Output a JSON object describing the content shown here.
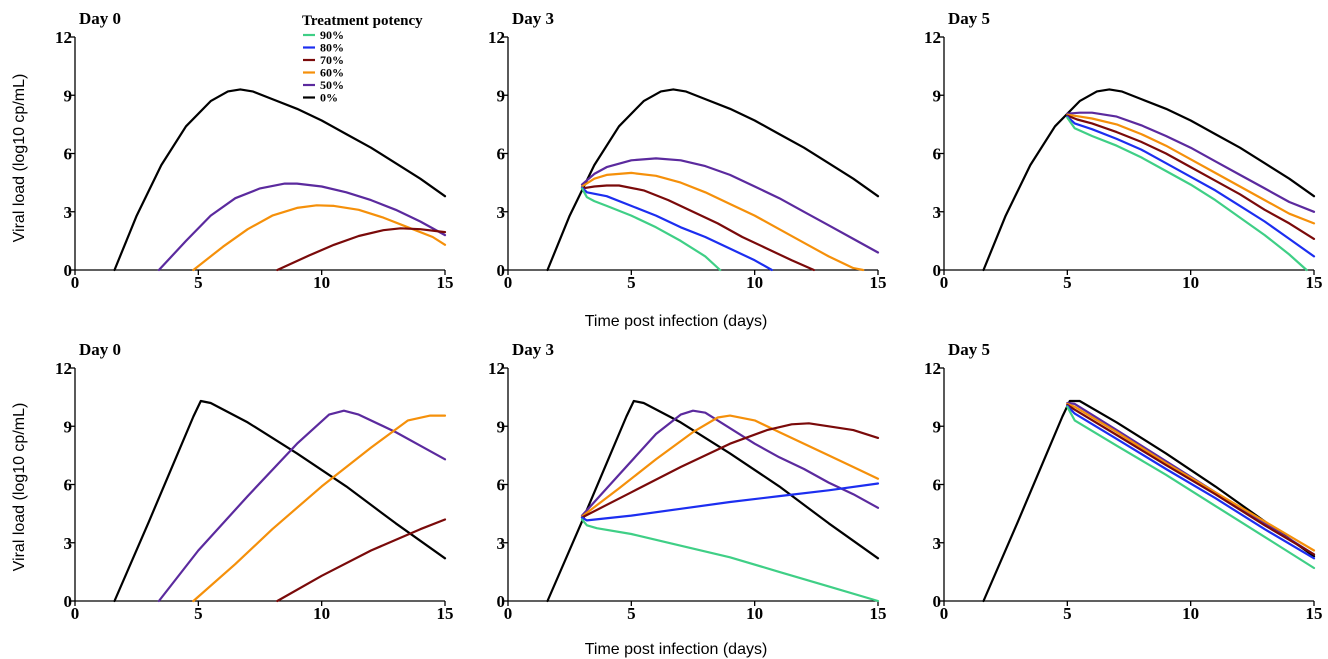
{
  "legend": {
    "title": "Treatment potency",
    "entries": [
      {
        "label": "90%",
        "color": "#3fcf86"
      },
      {
        "label": "80%",
        "color": "#1c2ef0"
      },
      {
        "label": "70%",
        "color": "#7a0a0a"
      },
      {
        "label": "60%",
        "color": "#f5900a"
      },
      {
        "label": "50%",
        "color": "#5b2a9e"
      },
      {
        "label": "0%",
        "color": "#000000"
      }
    ]
  },
  "chart_data": [
    {
      "type": "line",
      "title": "Day 0",
      "ylabel": "Viral load (log10 cp/mL)",
      "xlabel": "",
      "xlim": [
        0,
        15
      ],
      "ylim": [
        0,
        12
      ],
      "xticks": [
        0,
        5,
        10,
        15
      ],
      "yticks": [
        0,
        3,
        6,
        9,
        12
      ],
      "series": [
        {
          "name": "0%",
          "color": "#000000",
          "x": [
            1.6,
            2.5,
            3.5,
            4.5,
            5.5,
            6.2,
            6.7,
            7.2,
            8,
            9,
            10,
            11,
            12,
            13,
            14,
            15
          ],
          "y": [
            0,
            2.8,
            5.4,
            7.4,
            8.7,
            9.2,
            9.3,
            9.2,
            8.8,
            8.3,
            7.7,
            7,
            6.3,
            5.5,
            4.7,
            3.8
          ]
        },
        {
          "name": "50%",
          "color": "#5b2a9e",
          "x": [
            3.4,
            4.5,
            5.5,
            6.5,
            7.5,
            8.5,
            9,
            10,
            11,
            12,
            13,
            14,
            15
          ],
          "y": [
            0,
            1.5,
            2.8,
            3.7,
            4.2,
            4.45,
            4.45,
            4.3,
            4,
            3.6,
            3.1,
            2.5,
            1.8
          ]
        },
        {
          "name": "60%",
          "color": "#f5900a",
          "x": [
            4.8,
            6,
            7,
            8,
            9,
            9.8,
            10.5,
            11.5,
            12.5,
            13.5,
            14.5,
            15
          ],
          "y": [
            0,
            1.2,
            2.1,
            2.8,
            3.2,
            3.33,
            3.3,
            3.1,
            2.7,
            2.2,
            1.7,
            1.3
          ]
        },
        {
          "name": "70%",
          "color": "#7a0a0a",
          "x": [
            8.2,
            9.5,
            10.5,
            11.5,
            12.5,
            13.2,
            14,
            15
          ],
          "y": [
            0,
            0.75,
            1.3,
            1.75,
            2.05,
            2.15,
            2.1,
            1.95
          ]
        }
      ]
    },
    {
      "type": "line",
      "title": "Day 3",
      "ylabel": "",
      "xlabel": "Time post infection (days)",
      "xlim": [
        0,
        15
      ],
      "ylim": [
        0,
        12
      ],
      "xticks": [
        0,
        5,
        10,
        15
      ],
      "yticks": [
        0,
        3,
        6,
        9,
        12
      ],
      "series": [
        {
          "name": "0%",
          "color": "#000000",
          "x": [
            1.6,
            2.5,
            3.5,
            4.5,
            5.5,
            6.2,
            6.7,
            7.2,
            8,
            9,
            10,
            11,
            12,
            13,
            14,
            15
          ],
          "y": [
            0,
            2.8,
            5.4,
            7.4,
            8.7,
            9.2,
            9.3,
            9.2,
            8.8,
            8.3,
            7.7,
            7,
            6.3,
            5.5,
            4.7,
            3.8
          ]
        },
        {
          "name": "50%",
          "color": "#5b2a9e",
          "x": [
            3,
            3.5,
            4,
            5,
            6,
            7,
            8,
            9,
            10,
            11,
            12,
            13,
            14,
            15
          ],
          "y": [
            4.4,
            4.95,
            5.3,
            5.65,
            5.75,
            5.65,
            5.35,
            4.9,
            4.3,
            3.7,
            3,
            2.3,
            1.6,
            0.9
          ]
        },
        {
          "name": "60%",
          "color": "#f5900a",
          "x": [
            3,
            3.5,
            4,
            5,
            6,
            7,
            8,
            9,
            10,
            11,
            12,
            13,
            14,
            14.4
          ],
          "y": [
            4.3,
            4.7,
            4.9,
            5,
            4.85,
            4.5,
            4,
            3.4,
            2.8,
            2.1,
            1.4,
            0.7,
            0.1,
            0
          ]
        },
        {
          "name": "70%",
          "color": "#7a0a0a",
          "x": [
            3,
            3.5,
            4,
            4.5,
            5.5,
            6.5,
            7.5,
            8.5,
            9.5,
            10.5,
            11.5,
            12.4
          ],
          "y": [
            4.2,
            4.3,
            4.35,
            4.35,
            4.1,
            3.6,
            3,
            2.4,
            1.7,
            1.1,
            0.5,
            0
          ]
        },
        {
          "name": "80%",
          "color": "#1c2ef0",
          "x": [
            3,
            3.2,
            4,
            5,
            6,
            7,
            8,
            9,
            10,
            10.7
          ],
          "y": [
            4.25,
            4,
            3.8,
            3.3,
            2.8,
            2.2,
            1.7,
            1.1,
            0.5,
            0
          ]
        },
        {
          "name": "90%",
          "color": "#3fcf86",
          "x": [
            3,
            3.2,
            3.5,
            4,
            5,
            6,
            7,
            8,
            8.6
          ],
          "y": [
            4.2,
            3.75,
            3.55,
            3.3,
            2.8,
            2.2,
            1.5,
            0.7,
            0
          ]
        }
      ]
    },
    {
      "type": "line",
      "title": "Day 5",
      "ylabel": "",
      "xlabel": "",
      "xlim": [
        0,
        15
      ],
      "ylim": [
        0,
        12
      ],
      "xticks": [
        0,
        5,
        10,
        15
      ],
      "yticks": [
        0,
        3,
        6,
        9,
        12
      ],
      "series": [
        {
          "name": "0%",
          "color": "#000000",
          "x": [
            1.6,
            2.5,
            3.5,
            4.5,
            5.5,
            6.2,
            6.7,
            7.2,
            8,
            9,
            10,
            11,
            12,
            13,
            14,
            15
          ],
          "y": [
            0,
            2.8,
            5.4,
            7.4,
            8.7,
            9.2,
            9.3,
            9.2,
            8.8,
            8.3,
            7.7,
            7,
            6.3,
            5.5,
            4.7,
            3.8
          ]
        },
        {
          "name": "50%",
          "color": "#5b2a9e",
          "x": [
            5,
            5.5,
            6,
            7,
            8,
            9,
            10,
            11,
            12,
            13,
            14,
            15
          ],
          "y": [
            8.05,
            8.1,
            8.1,
            7.9,
            7.45,
            6.9,
            6.3,
            5.6,
            4.9,
            4.2,
            3.5,
            3
          ]
        },
        {
          "name": "60%",
          "color": "#f5900a",
          "x": [
            5,
            5.5,
            6,
            7,
            8,
            9,
            10,
            11,
            12,
            13,
            14,
            15
          ],
          "y": [
            8,
            7.9,
            7.8,
            7.5,
            7,
            6.4,
            5.7,
            5,
            4.3,
            3.6,
            2.9,
            2.4
          ]
        },
        {
          "name": "70%",
          "color": "#7a0a0a",
          "x": [
            5,
            5.4,
            6,
            7,
            8,
            9,
            10,
            11,
            12,
            13,
            14,
            15
          ],
          "y": [
            7.95,
            7.75,
            7.55,
            7.1,
            6.6,
            6,
            5.3,
            4.6,
            3.9,
            3.1,
            2.4,
            1.6
          ]
        },
        {
          "name": "80%",
          "color": "#1c2ef0",
          "x": [
            5,
            5.3,
            6,
            7,
            8,
            9,
            10,
            11,
            12,
            13,
            14,
            15
          ],
          "y": [
            7.9,
            7.55,
            7.25,
            6.75,
            6.2,
            5.5,
            4.8,
            4.1,
            3.3,
            2.5,
            1.6,
            0.7
          ]
        },
        {
          "name": "90%",
          "color": "#3fcf86",
          "x": [
            5,
            5.3,
            6,
            7,
            8,
            9,
            10,
            11,
            12,
            13,
            14,
            14.7
          ],
          "y": [
            7.85,
            7.3,
            6.9,
            6.4,
            5.8,
            5.1,
            4.4,
            3.6,
            2.7,
            1.8,
            0.8,
            0
          ]
        }
      ]
    },
    {
      "type": "line",
      "title": "Day 0",
      "ylabel": "Viral load (log10 cp/mL)",
      "xlabel": "",
      "xlim": [
        0,
        15
      ],
      "ylim": [
        0,
        12
      ],
      "xticks": [
        0,
        5,
        10,
        15
      ],
      "yticks": [
        0,
        3,
        6,
        9,
        12
      ],
      "series": [
        {
          "name": "0%",
          "color": "#000000",
          "x": [
            1.6,
            3,
            4,
            4.8,
            5.1,
            5.5,
            7,
            9,
            11,
            13,
            15
          ],
          "y": [
            0,
            4.1,
            7.1,
            9.5,
            10.3,
            10.2,
            9.2,
            7.6,
            5.9,
            4,
            2.2
          ]
        },
        {
          "name": "50%",
          "color": "#5b2a9e",
          "x": [
            3.4,
            5,
            7,
            9,
            10.3,
            10.9,
            11.5,
            13,
            14,
            15
          ],
          "y": [
            0,
            2.6,
            5.4,
            8.1,
            9.6,
            9.8,
            9.6,
            8.7,
            8,
            7.3
          ]
        },
        {
          "name": "60%",
          "color": "#f5900a",
          "x": [
            4.8,
            6.5,
            8,
            10,
            12,
            13.5,
            14.4,
            15
          ],
          "y": [
            0,
            1.9,
            3.7,
            5.9,
            7.9,
            9.3,
            9.55,
            9.55
          ]
        },
        {
          "name": "70%",
          "color": "#7a0a0a",
          "x": [
            8.2,
            10,
            12,
            14,
            15
          ],
          "y": [
            0,
            1.3,
            2.6,
            3.7,
            4.2
          ]
        }
      ]
    },
    {
      "type": "line",
      "title": "Day 3",
      "ylabel": "",
      "xlabel": "Time post infection (days)",
      "xlim": [
        0,
        15
      ],
      "ylim": [
        0,
        12
      ],
      "xticks": [
        0,
        5,
        10,
        15
      ],
      "yticks": [
        0,
        3,
        6,
        9,
        12
      ],
      "series": [
        {
          "name": "0%",
          "color": "#000000",
          "x": [
            1.6,
            3,
            4,
            4.8,
            5.1,
            5.5,
            7,
            9,
            11,
            13,
            15
          ],
          "y": [
            0,
            4.1,
            7.1,
            9.5,
            10.3,
            10.2,
            9.2,
            7.6,
            5.9,
            4,
            2.2
          ]
        },
        {
          "name": "50%",
          "color": "#5b2a9e",
          "x": [
            3,
            4.5,
            6,
            7,
            7.5,
            8,
            9,
            10,
            11,
            12,
            13,
            14,
            15
          ],
          "y": [
            4.4,
            6.5,
            8.6,
            9.6,
            9.8,
            9.7,
            8.9,
            8.1,
            7.4,
            6.8,
            6.1,
            5.5,
            4.8
          ]
        },
        {
          "name": "60%",
          "color": "#f5900a",
          "x": [
            3,
            4.5,
            6,
            7.5,
            8.5,
            9,
            10,
            11,
            12,
            13,
            14,
            15
          ],
          "y": [
            4.35,
            5.8,
            7.3,
            8.7,
            9.45,
            9.55,
            9.3,
            8.7,
            8.1,
            7.5,
            6.9,
            6.3
          ]
        },
        {
          "name": "70%",
          "color": "#7a0a0a",
          "x": [
            3,
            5,
            7,
            9,
            10.5,
            11.5,
            12.2,
            13,
            14,
            15
          ],
          "y": [
            4.3,
            5.6,
            6.9,
            8.1,
            8.8,
            9.1,
            9.15,
            9,
            8.8,
            8.4
          ]
        },
        {
          "name": "80%",
          "color": "#1c2ef0",
          "x": [
            3,
            3.2,
            5,
            7,
            9,
            11,
            13,
            15
          ],
          "y": [
            4.3,
            4.15,
            4.4,
            4.75,
            5.1,
            5.4,
            5.7,
            6.05
          ]
        },
        {
          "name": "90%",
          "color": "#3fcf86",
          "x": [
            3,
            3.2,
            3.6,
            5,
            7,
            9,
            11,
            13,
            15
          ],
          "y": [
            4.2,
            3.9,
            3.75,
            3.45,
            2.85,
            2.25,
            1.5,
            0.75,
            0
          ]
        }
      ]
    },
    {
      "type": "line",
      "title": "Day 5",
      "ylabel": "",
      "xlabel": "",
      "xlim": [
        0,
        15
      ],
      "ylim": [
        0,
        12
      ],
      "xticks": [
        0,
        5,
        10,
        15
      ],
      "yticks": [
        0,
        3,
        6,
        9,
        12
      ],
      "series": [
        {
          "name": "0%",
          "color": "#000000",
          "x": [
            1.6,
            3,
            4,
            4.8,
            5.1,
            5.5,
            7,
            9,
            11,
            13,
            15
          ],
          "y": [
            0,
            4.1,
            7.1,
            9.5,
            10.3,
            10.3,
            9.2,
            7.6,
            5.9,
            4.1,
            2.3
          ]
        },
        {
          "name": "50%",
          "color": "#5b2a9e",
          "x": [
            5,
            5.3,
            7,
            9,
            11,
            13,
            15
          ],
          "y": [
            10.2,
            10.15,
            8.8,
            7.2,
            5.6,
            4,
            2.4
          ]
        },
        {
          "name": "60%",
          "color": "#f5900a",
          "x": [
            5,
            5.3,
            7,
            9,
            11,
            13,
            15
          ],
          "y": [
            10.15,
            10,
            8.7,
            7.1,
            5.6,
            4.1,
            2.6
          ]
        },
        {
          "name": "70%",
          "color": "#7a0a0a",
          "x": [
            5,
            5.3,
            7,
            9,
            11,
            13,
            15
          ],
          "y": [
            10.1,
            9.85,
            8.55,
            7,
            5.5,
            3.9,
            2.4
          ]
        },
        {
          "name": "80%",
          "color": "#1c2ef0",
          "x": [
            5,
            5.3,
            7,
            9,
            11,
            13,
            15
          ],
          "y": [
            10.05,
            9.65,
            8.35,
            6.8,
            5.3,
            3.7,
            2.2
          ]
        },
        {
          "name": "90%",
          "color": "#3fcf86",
          "x": [
            5,
            5.3,
            7,
            9,
            11,
            13,
            15
          ],
          "y": [
            10,
            9.3,
            8,
            6.5,
            4.9,
            3.3,
            1.7
          ]
        }
      ]
    }
  ]
}
